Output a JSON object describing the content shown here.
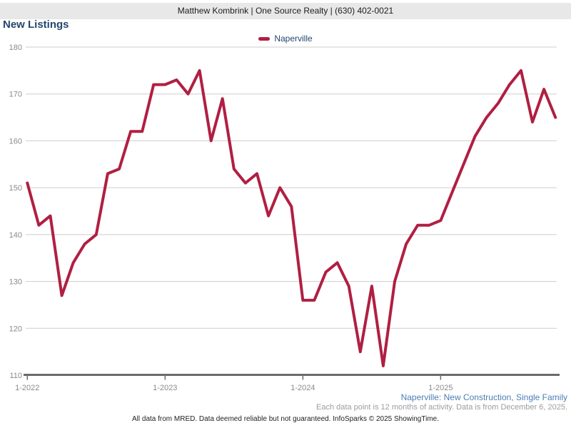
{
  "header": {
    "agent_info": "Matthew Kombrink | One Source Realty | (630) 402-0021"
  },
  "title": "New Listings",
  "legend": {
    "label": "Naperville",
    "color": "#B01F42"
  },
  "chart_data": {
    "type": "line",
    "title": "New Listings",
    "grid": true,
    "legend_position": "top-center",
    "xlabel": "",
    "ylabel": "",
    "ylim": [
      110,
      180
    ],
    "yticks": [
      180,
      170,
      160,
      150,
      140,
      130,
      120,
      110
    ],
    "x_start": "1-2022",
    "x_interval": "monthly",
    "xticks": [
      {
        "label": "1-2022",
        "month_index": 0
      },
      {
        "label": "1-2023",
        "month_index": 12
      },
      {
        "label": "1-2024",
        "month_index": 24
      },
      {
        "label": "1-2025",
        "month_index": 36
      }
    ],
    "series": [
      {
        "name": "Naperville",
        "color": "#B01F42",
        "values": [
          151,
          142,
          144,
          127,
          134,
          138,
          140,
          153,
          154,
          162,
          162,
          172,
          172,
          173,
          170,
          175,
          160,
          169,
          154,
          151,
          153,
          144,
          150,
          146,
          126,
          126,
          132,
          134,
          129,
          115,
          129,
          112,
          130,
          138,
          142,
          142,
          143,
          149,
          155,
          161,
          165,
          168,
          172,
          175,
          164,
          171,
          165
        ]
      }
    ]
  },
  "footer": {
    "criteria_link": "Naperville: New Construction, Single Family",
    "data_note": "Each data point is 12 months of activity. Data is from December 6, 2025.",
    "disclaimer": "All data from MRED. Data deemed reliable but not guaranteed. InfoSparks © 2025 ShowingTime."
  },
  "colors": {
    "line": "#B01F42",
    "title_text": "#24476E",
    "link_blue": "#4C7EB5",
    "note_gray": "#9C9C9C",
    "grid": "#CDCDCD",
    "axis": "#6B6B6B",
    "tick_label": "#8A8A8A",
    "header_bg": "#E8E8E8"
  }
}
